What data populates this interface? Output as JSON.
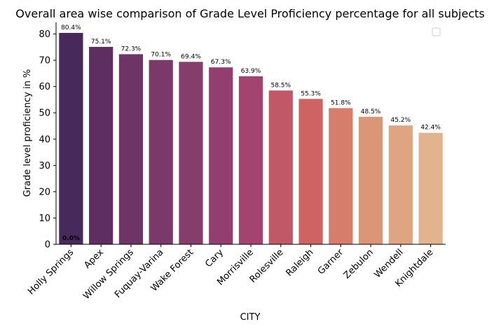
{
  "chart_data": {
    "type": "bar",
    "title": "Overall area wise comparison of Grade Level Proficiency percentage for all subjects",
    "xlabel": "CITY",
    "ylabel": "Grade level proficiency in %",
    "ylim": [
      0,
      84.4
    ],
    "yticks": [
      0,
      10,
      20,
      30,
      40,
      50,
      60,
      70,
      80
    ],
    "grid": false,
    "legend": {
      "placement": "top-right",
      "entries": []
    },
    "categories": [
      "Holly Springs",
      "Apex",
      "Willow Springs",
      "Fuquay-Varina",
      "Wake Forest",
      "Cary",
      "Morrisville",
      "Rolesville",
      "Raleigh",
      "Garner",
      "Zebulon",
      "Wendell",
      "Knightdale"
    ],
    "values": [
      80.4,
      75.1,
      72.3,
      70.1,
      69.4,
      67.3,
      63.9,
      58.5,
      55.3,
      51.8,
      48.5,
      45.2,
      42.4
    ],
    "value_labels": [
      "80.4%",
      "75.1%",
      "72.3%",
      "70.1%",
      "69.4%",
      "67.3%",
      "63.9%",
      "58.5%",
      "55.3%",
      "51.8%",
      "48.5%",
      "45.2%",
      "42.4%"
    ],
    "extra_annotation": "0.0%",
    "colors": [
      "#47295c",
      "#5e2e61",
      "#6e3466",
      "#7a3968",
      "#853d6c",
      "#923f6f",
      "#a24370",
      "#c15868",
      "#cf6364",
      "#d77d6c",
      "#db9677",
      "#dfa583",
      "#e1b48f"
    ]
  }
}
